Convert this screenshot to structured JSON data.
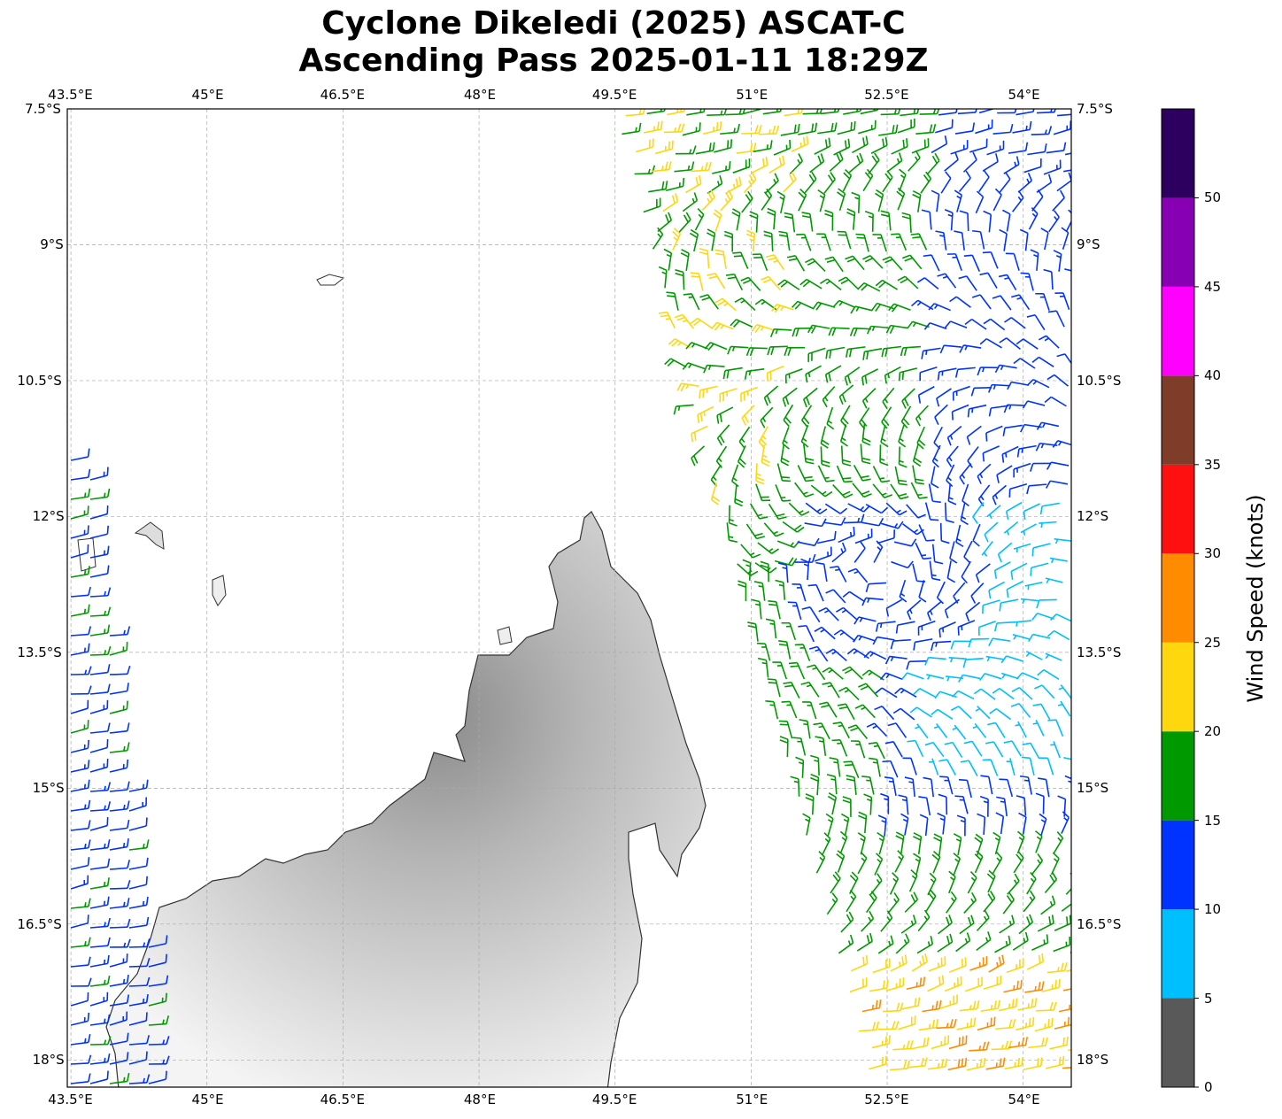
{
  "chart_data": {
    "type": "wind-barb-map",
    "title_line1": "Cyclone Dikeledi (2025) ASCAT-C",
    "title_line2": "Ascending Pass 2025-01-11 18:29Z",
    "lon_range": [
      43.46,
      54.53
    ],
    "lat_range": [
      -18.3,
      -7.5
    ],
    "lon_ticks": [
      43.5,
      45,
      46.5,
      48,
      49.5,
      51,
      52.5,
      54
    ],
    "lon_tick_labels": [
      "43.5°E",
      "45°E",
      "46.5°E",
      "48°E",
      "49.5°E",
      "51°E",
      "52.5°E",
      "54°E"
    ],
    "lat_ticks": [
      -7.5,
      -9,
      -10.5,
      -12,
      -13.5,
      -15,
      -16.5,
      -18
    ],
    "lat_tick_labels": [
      "7.5°S",
      "9°S",
      "10.5°S",
      "12°S",
      "13.5°S",
      "15°S",
      "16.5°S",
      "18°S"
    ],
    "gridlines": true,
    "colorbar": {
      "label": "Wind Speed (knots)",
      "bounds": [
        0,
        5,
        10,
        15,
        20,
        25,
        30,
        35,
        40,
        45,
        50,
        55
      ],
      "tick_labels": [
        "0",
        "5",
        "10",
        "15",
        "20",
        "25",
        "30",
        "35",
        "40",
        "45",
        "50"
      ],
      "colors": [
        "#595959",
        "#00bfff",
        "#0033ff",
        "#009900",
        "#ffd70f",
        "#ff8c00",
        "#ff1010",
        "#7f3c28",
        "#ff00ff",
        "#8800b4",
        "#2d0060"
      ]
    },
    "storm_center_approx": {
      "lon": 52.5,
      "lat": -12.6
    }
  }
}
